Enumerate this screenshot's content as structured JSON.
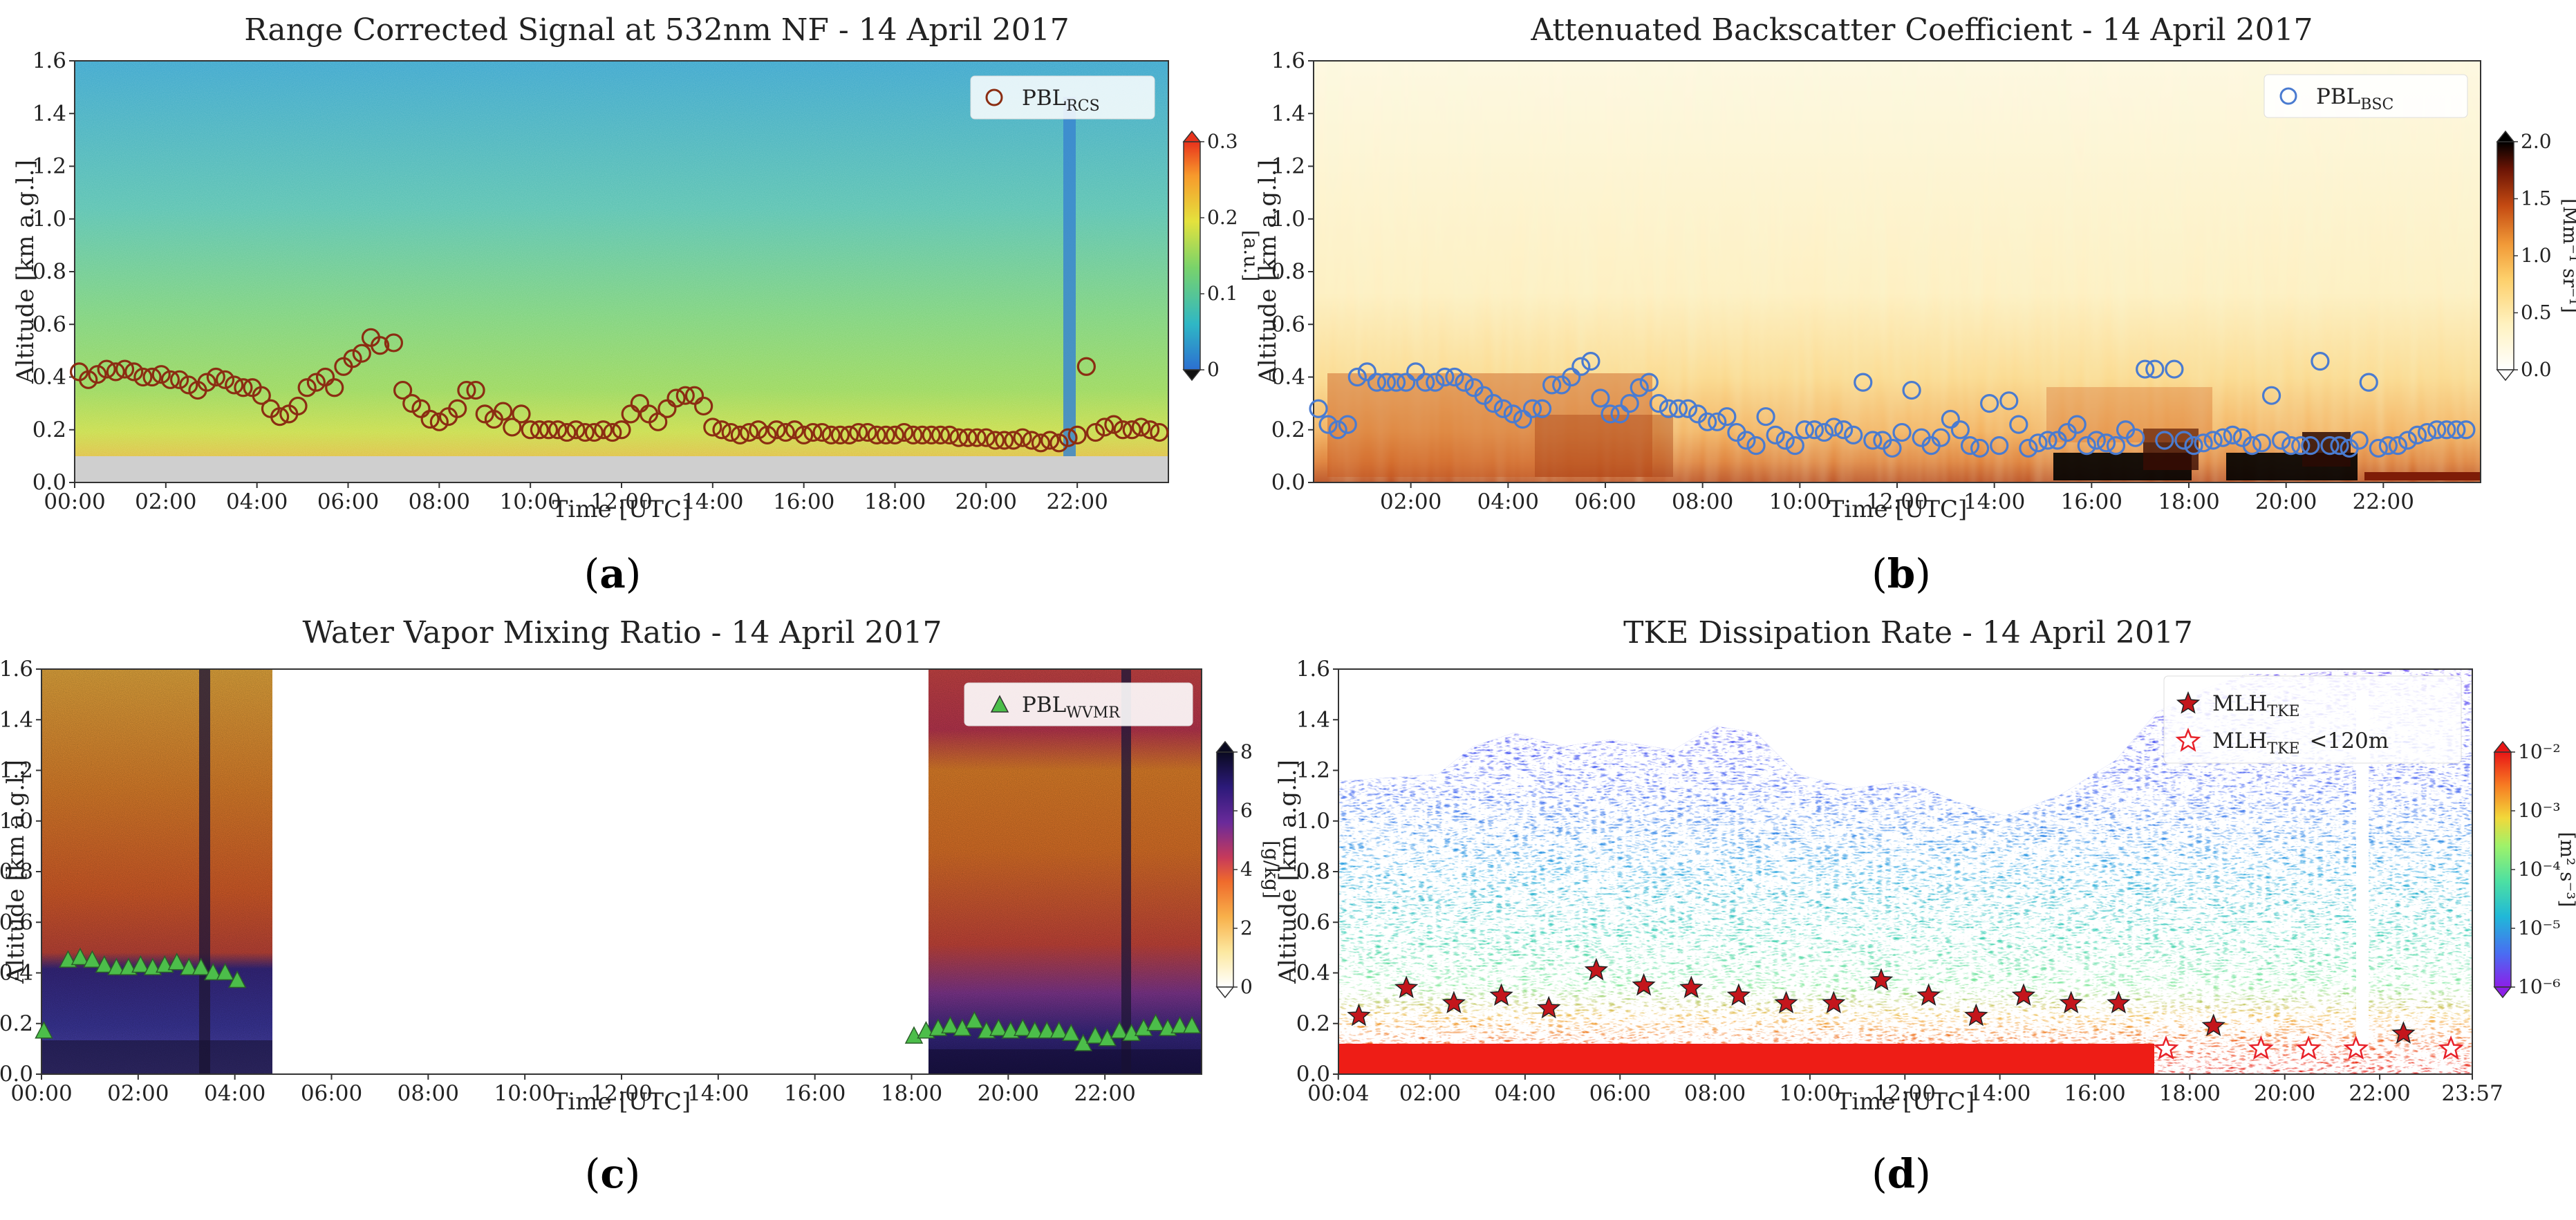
{
  "figure": {
    "captions": [
      "a",
      "b",
      "c",
      "d"
    ]
  },
  "chart_data": [
    {
      "id": "a",
      "type": "heatmap",
      "title": "Range Corrected Signal at 532nm NF - 14 April 2017",
      "xlabel": "Time [UTC]",
      "ylabel": "Altitude [km a.g.l.]",
      "xlim": [
        0,
        24
      ],
      "ylim": [
        0,
        1.6
      ],
      "xticks": [
        0,
        2,
        4,
        6,
        8,
        10,
        12,
        14,
        16,
        18,
        20,
        22
      ],
      "xtick_labels": [
        "00:00",
        "02:00",
        "04:00",
        "06:00",
        "08:00",
        "10:00",
        "12:00",
        "14:00",
        "16:00",
        "18:00",
        "20:00",
        "22:00"
      ],
      "yticks": [
        0,
        0.2,
        0.4,
        0.6,
        0.8,
        1.0,
        1.2,
        1.4,
        1.6
      ],
      "ytick_labels": [
        "0.0",
        "0.2",
        "0.4",
        "0.6",
        "0.8",
        "1.0",
        "1.2",
        "1.4",
        "1.6"
      ],
      "colorbar": {
        "label": "[a.u.]",
        "ticks": [
          "0",
          "0.1",
          "0.2",
          "0.3"
        ],
        "colors": [
          "#2c6fd1",
          "#2fb7c5",
          "#7ad36a",
          "#e4e23d",
          "#f79a2c",
          "#e8331c"
        ]
      },
      "legend": {
        "label": "PBL",
        "sub": "RCS",
        "marker": "circle",
        "position": "top-right"
      },
      "series": [
        {
          "name": "PBL_RCS",
          "marker": "circle",
          "color": "#8b2d12",
          "x": [
            0.1,
            0.3,
            0.5,
            0.7,
            0.9,
            1.1,
            1.3,
            1.5,
            1.7,
            1.9,
            2.1,
            2.3,
            2.5,
            2.7,
            2.9,
            3.1,
            3.3,
            3.5,
            3.7,
            3.9,
            4.1,
            4.3,
            4.5,
            4.7,
            4.9,
            5.1,
            5.3,
            5.5,
            5.7,
            5.9,
            6.1,
            6.3,
            6.5,
            6.7,
            7.0,
            7.2,
            7.4,
            7.6,
            7.8,
            8.0,
            8.2,
            8.4,
            8.6,
            8.8,
            9.0,
            9.2,
            9.4,
            9.6,
            9.8,
            10.0,
            10.2,
            10.4,
            10.6,
            10.8,
            11.0,
            11.2,
            11.4,
            11.6,
            11.8,
            12.0,
            12.2,
            12.4,
            12.6,
            12.8,
            13.0,
            13.2,
            13.4,
            13.6,
            13.8,
            14.0,
            14.2,
            14.4,
            14.6,
            14.8,
            15.0,
            15.2,
            15.4,
            15.6,
            15.8,
            16.0,
            16.2,
            16.4,
            16.6,
            16.8,
            17.0,
            17.2,
            17.4,
            17.6,
            17.8,
            18.0,
            18.2,
            18.4,
            18.6,
            18.8,
            19.0,
            19.2,
            19.4,
            19.6,
            19.8,
            20.0,
            20.2,
            20.4,
            20.6,
            20.8,
            21.0,
            21.2,
            21.4,
            21.6,
            21.8,
            22.0,
            22.2,
            22.4,
            22.6,
            22.8,
            23.0,
            23.2,
            23.4,
            23.6,
            23.8
          ],
          "y": [
            0.42,
            0.39,
            0.41,
            0.43,
            0.42,
            0.43,
            0.42,
            0.4,
            0.4,
            0.41,
            0.39,
            0.39,
            0.37,
            0.35,
            0.38,
            0.4,
            0.39,
            0.37,
            0.36,
            0.36,
            0.33,
            0.28,
            0.25,
            0.26,
            0.29,
            0.36,
            0.38,
            0.4,
            0.36,
            0.44,
            0.47,
            0.49,
            0.55,
            0.52,
            0.53,
            0.35,
            0.3,
            0.28,
            0.24,
            0.23,
            0.25,
            0.28,
            0.35,
            0.35,
            0.26,
            0.24,
            0.27,
            0.21,
            0.26,
            0.2,
            0.2,
            0.2,
            0.2,
            0.19,
            0.2,
            0.19,
            0.19,
            0.2,
            0.19,
            0.2,
            0.26,
            0.3,
            0.26,
            0.23,
            0.28,
            0.32,
            0.33,
            0.33,
            0.29,
            0.21,
            0.2,
            0.19,
            0.18,
            0.19,
            0.2,
            0.18,
            0.2,
            0.19,
            0.2,
            0.18,
            0.19,
            0.19,
            0.18,
            0.18,
            0.18,
            0.19,
            0.19,
            0.18,
            0.18,
            0.18,
            0.19,
            0.18,
            0.18,
            0.18,
            0.18,
            0.18,
            0.17,
            0.17,
            0.17,
            0.17,
            0.16,
            0.16,
            0.16,
            0.17,
            0.16,
            0.15,
            0.16,
            0.15,
            0.17,
            0.18,
            0.44,
            0.19,
            0.21,
            0.22,
            0.2,
            0.2,
            0.21,
            0.2,
            0.19
          ]
        }
      ]
    },
    {
      "id": "b",
      "type": "heatmap",
      "title": "Attenuated Backscatter Coefficient - 14 April 2017",
      "xlabel": "Time [UTC]",
      "ylabel": "Altitude [km a.g.l.]",
      "xlim": [
        0,
        24
      ],
      "ylim": [
        0,
        1.6
      ],
      "xticks": [
        2,
        4,
        6,
        8,
        10,
        12,
        14,
        16,
        18,
        20,
        22
      ],
      "xtick_labels": [
        "02:00",
        "04:00",
        "06:00",
        "08:00",
        "10:00",
        "12:00",
        "14:00",
        "16:00",
        "18:00",
        "20:00",
        "22:00"
      ],
      "yticks": [
        0,
        0.2,
        0.4,
        0.6,
        0.8,
        1.0,
        1.2,
        1.4,
        1.6
      ],
      "ytick_labels": [
        "0.0",
        "0.2",
        "0.4",
        "0.6",
        "0.8",
        "1.0",
        "1.2",
        "1.4",
        "1.6"
      ],
      "colorbar": {
        "label": "[Mm⁻¹ sr⁻¹]",
        "ticks": [
          "0.0",
          "0.5",
          "1.0",
          "1.5",
          "2.0"
        ],
        "colors": [
          "#ffffff",
          "#fff2c0",
          "#fdcf6a",
          "#f19a38",
          "#c44a12",
          "#6b1405",
          "#000000"
        ]
      },
      "legend": {
        "label": "PBL",
        "sub": "BSC",
        "marker": "circle",
        "position": "top-right"
      },
      "series": [
        {
          "name": "PBL_BSC",
          "marker": "circle",
          "color": "#4a7bd0",
          "x": [
            0.1,
            0.3,
            0.5,
            0.7,
            0.9,
            1.1,
            1.3,
            1.5,
            1.7,
            1.9,
            2.1,
            2.3,
            2.5,
            2.7,
            2.9,
            3.1,
            3.3,
            3.5,
            3.7,
            3.9,
            4.1,
            4.3,
            4.5,
            4.7,
            4.9,
            5.1,
            5.3,
            5.5,
            5.7,
            5.9,
            6.1,
            6.3,
            6.5,
            6.7,
            6.9,
            7.1,
            7.3,
            7.5,
            7.7,
            7.9,
            8.1,
            8.3,
            8.5,
            8.7,
            8.9,
            9.1,
            9.3,
            9.5,
            9.7,
            9.9,
            10.1,
            10.3,
            10.5,
            10.7,
            10.9,
            11.1,
            11.3,
            11.5,
            11.7,
            11.9,
            12.1,
            12.3,
            12.5,
            12.7,
            12.9,
            13.1,
            13.3,
            13.5,
            13.7,
            13.9,
            14.1,
            14.3,
            14.5,
            14.7,
            14.9,
            15.1,
            15.3,
            15.5,
            15.7,
            15.9,
            16.1,
            16.3,
            16.5,
            16.7,
            16.9,
            17.1,
            17.3,
            17.5,
            17.7,
            17.9,
            18.1,
            18.3,
            18.5,
            18.7,
            18.9,
            19.1,
            19.3,
            19.5,
            19.7,
            19.9,
            20.1,
            20.3,
            20.5,
            20.7,
            20.9,
            21.1,
            21.3,
            21.5,
            21.7,
            21.9,
            22.1,
            22.3,
            22.5,
            22.7,
            22.9,
            23.1,
            23.3,
            23.5,
            23.7
          ],
          "y": [
            0.28,
            0.22,
            0.2,
            0.22,
            0.4,
            0.42,
            0.38,
            0.38,
            0.38,
            0.38,
            0.42,
            0.38,
            0.38,
            0.4,
            0.4,
            0.38,
            0.36,
            0.33,
            0.3,
            0.28,
            0.26,
            0.24,
            0.28,
            0.28,
            0.37,
            0.37,
            0.4,
            0.44,
            0.46,
            0.32,
            0.26,
            0.26,
            0.3,
            0.36,
            0.38,
            0.3,
            0.28,
            0.28,
            0.28,
            0.26,
            0.23,
            0.23,
            0.25,
            0.19,
            0.16,
            0.14,
            0.25,
            0.18,
            0.16,
            0.14,
            0.2,
            0.2,
            0.19,
            0.21,
            0.2,
            0.18,
            0.38,
            0.16,
            0.16,
            0.13,
            0.19,
            0.35,
            0.17,
            0.14,
            0.17,
            0.24,
            0.2,
            0.14,
            0.13,
            0.3,
            0.14,
            0.31,
            0.22,
            0.13,
            0.15,
            0.16,
            0.16,
            0.19,
            0.22,
            0.14,
            0.16,
            0.15,
            0.14,
            0.2,
            0.17,
            0.43,
            0.43,
            0.16,
            0.43,
            0.16,
            0.14,
            0.15,
            0.16,
            0.17,
            0.18,
            0.17,
            0.14,
            0.15,
            0.33,
            0.16,
            0.14,
            0.14,
            0.14,
            0.46,
            0.14,
            0.14,
            0.13,
            0.16,
            0.38,
            0.13,
            0.14,
            0.14,
            0.16,
            0.18,
            0.19,
            0.2,
            0.2,
            0.2,
            0.2
          ]
        }
      ]
    },
    {
      "id": "c",
      "type": "heatmap",
      "title": "Water Vapor Mixing Ratio - 14 April 2017",
      "xlabel": "Time [UTC]",
      "ylabel": "Altitude [km a.g.l.]",
      "xlim": [
        0,
        24
      ],
      "ylim": [
        0,
        1.6
      ],
      "xticks": [
        0,
        2,
        4,
        6,
        8,
        10,
        12,
        14,
        16,
        18,
        20,
        22
      ],
      "xtick_labels": [
        "00:00",
        "02:00",
        "04:00",
        "06:00",
        "08:00",
        "10:00",
        "12:00",
        "14:00",
        "16:00",
        "18:00",
        "20:00",
        "22:00"
      ],
      "yticks": [
        0,
        0.2,
        0.4,
        0.6,
        0.8,
        1.0,
        1.2,
        1.4,
        1.6
      ],
      "ytick_labels": [
        "0.0",
        "0.2",
        "0.4",
        "0.6",
        "0.8",
        "1.0",
        "1.2",
        "1.4",
        "1.6"
      ],
      "colorbar": {
        "label": "[g/kg]",
        "ticks": [
          "0",
          "2",
          "4",
          "6",
          "8"
        ],
        "colors": [
          "#ffffff",
          "#fce8a0",
          "#f8b04a",
          "#ef6a2c",
          "#c73a5a",
          "#6a2a9a",
          "#2c1a7a",
          "#0a0a20"
        ]
      },
      "legend": {
        "label": "PBL",
        "sub": "WVMR",
        "marker": "triangle",
        "position": "top-right"
      },
      "series": [
        {
          "name": "PBL_WVMR",
          "marker": "triangle",
          "color": "#4cbe4a",
          "x": [
            0.05,
            0.55,
            0.8,
            1.05,
            1.3,
            1.55,
            1.8,
            2.05,
            2.3,
            2.55,
            2.8,
            3.05,
            3.3,
            3.55,
            3.8,
            4.05,
            18.05,
            18.3,
            18.55,
            18.8,
            19.05,
            19.3,
            19.55,
            19.8,
            20.05,
            20.3,
            20.55,
            20.8,
            21.05,
            21.3,
            21.55,
            21.8,
            22.05,
            22.3,
            22.55,
            22.8,
            23.05,
            23.3,
            23.55,
            23.8
          ],
          "y": [
            0.17,
            0.45,
            0.46,
            0.45,
            0.43,
            0.42,
            0.42,
            0.43,
            0.42,
            0.43,
            0.44,
            0.42,
            0.42,
            0.4,
            0.4,
            0.37,
            0.15,
            0.17,
            0.18,
            0.19,
            0.18,
            0.21,
            0.17,
            0.18,
            0.17,
            0.18,
            0.17,
            0.17,
            0.17,
            0.16,
            0.12,
            0.15,
            0.14,
            0.17,
            0.16,
            0.18,
            0.2,
            0.18,
            0.19,
            0.19
          ]
        }
      ]
    },
    {
      "id": "d",
      "type": "heatmap",
      "title": "TKE Dissipation Rate - 14 April 2017",
      "xlabel": "Time [UTC]",
      "ylabel": "Altitude [km a.g.l.]",
      "xlim": [
        0.07,
        23.95
      ],
      "ylim": [
        0,
        1.6
      ],
      "xticks": [
        0.0667,
        2,
        4,
        6,
        8,
        10,
        12,
        14,
        16,
        18,
        20,
        22,
        23.95
      ],
      "xtick_labels": [
        "00:04",
        "02:00",
        "04:00",
        "06:00",
        "08:00",
        "10:00",
        "12:00",
        "14:00",
        "16:00",
        "18:00",
        "20:00",
        "22:00",
        "23:57"
      ],
      "yticks": [
        0,
        0.2,
        0.4,
        0.6,
        0.8,
        1.0,
        1.2,
        1.4,
        1.6
      ],
      "ytick_labels": [
        "0.0",
        "0.2",
        "0.4",
        "0.6",
        "0.8",
        "1.0",
        "1.2",
        "1.4",
        "1.6"
      ],
      "colorbar": {
        "label": "[m² s⁻³]",
        "ticks": [
          "10⁻⁶",
          "10⁻⁵",
          "10⁻⁴",
          "10⁻³",
          "10⁻²"
        ],
        "colors": [
          "#8c1fe8",
          "#4a6cf2",
          "#20b8d8",
          "#4de0a2",
          "#9ef26a",
          "#f2d83a",
          "#f77a22",
          "#e81616"
        ]
      },
      "legend": {
        "items": [
          {
            "label": "MLH",
            "sub": "TKE",
            "suffix": "",
            "marker": "star-filled"
          },
          {
            "label": "MLH",
            "sub": "TKE",
            "suffix": "<120m",
            "marker": "star-open"
          }
        ],
        "position": "top-right"
      },
      "series": [
        {
          "name": "MLH_TKE",
          "marker": "star-filled",
          "color": "#c4161c",
          "x": [
            0.5,
            1.5,
            2.5,
            3.5,
            4.5,
            5.5,
            6.5,
            7.5,
            8.5,
            9.5,
            10.5,
            11.5,
            12.5,
            13.5,
            14.5,
            15.5,
            16.5,
            18.5,
            22.5
          ],
          "y": [
            0.23,
            0.34,
            0.28,
            0.31,
            0.26,
            0.41,
            0.35,
            0.34,
            0.31,
            0.28,
            0.28,
            0.37,
            0.31,
            0.23,
            0.31,
            0.28,
            0.28,
            0.19,
            0.16
          ]
        },
        {
          "name": "MLH_TKE <120m",
          "marker": "star-open",
          "color": "#e8222a",
          "x": [
            17.5,
            19.5,
            20.5,
            21.5,
            23.5
          ],
          "y": [
            0.1,
            0.1,
            0.1,
            0.1,
            0.1
          ]
        }
      ]
    }
  ]
}
